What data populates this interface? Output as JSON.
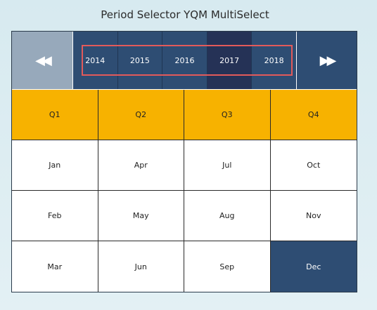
{
  "title": "Period Selector YQM MultiSelect",
  "nav": {
    "prev": "◀◀",
    "next": "▶▶"
  },
  "years": [
    "2014",
    "2015",
    "2016",
    "2017",
    "2018"
  ],
  "selected_year": "2017",
  "quarters": [
    "Q1",
    "Q2",
    "Q3",
    "Q4"
  ],
  "months": [
    [
      "Jan",
      "Apr",
      "Jul",
      "Oct"
    ],
    [
      "Feb",
      "May",
      "Aug",
      "Nov"
    ],
    [
      "Mar",
      "Jun",
      "Sep",
      "Dec"
    ]
  ],
  "selected_month": "Dec",
  "colors": {
    "year_bg": "#2e4d73",
    "year_selected": "#253256",
    "quarter_bg": "#f7b200",
    "highlight": "#e35a5a",
    "prev_bg": "#97a9bb"
  }
}
